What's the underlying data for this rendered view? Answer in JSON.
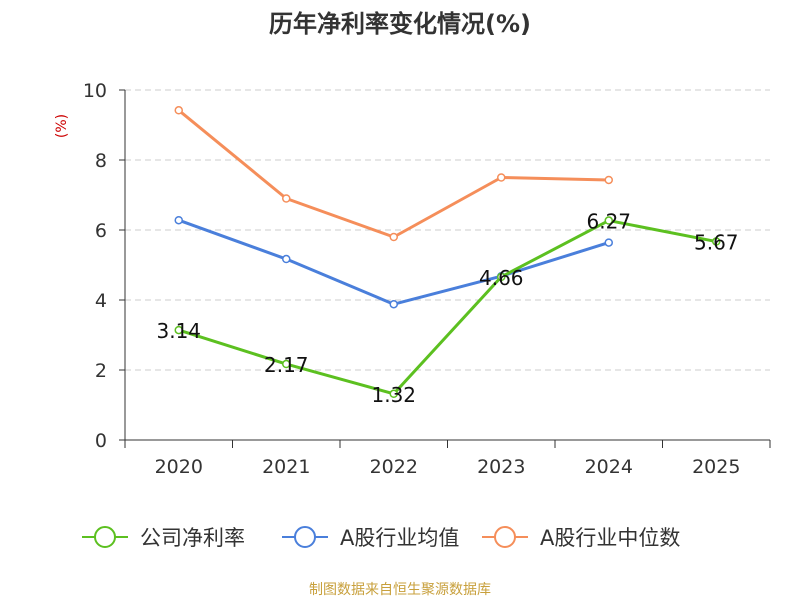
{
  "chart_data": {
    "type": "line",
    "title": "历年净利率变化情况(%)",
    "ylabel": "(%)",
    "xlabel": "",
    "categories": [
      "2020",
      "2021",
      "2022",
      "2023",
      "2024",
      "2025"
    ],
    "ylim": [
      0,
      10
    ],
    "yticks": [
      0,
      2,
      4,
      6,
      8,
      10
    ],
    "grid": true,
    "legend_position": "bottom",
    "series": [
      {
        "name": "公司净利率",
        "color": "#5cc020",
        "values": [
          3.14,
          2.17,
          1.32,
          4.66,
          6.27,
          5.67
        ],
        "labels": [
          "3.14",
          "2.17",
          "1.32",
          "4.66",
          "6.27",
          "5.67"
        ]
      },
      {
        "name": "A股行业均值",
        "color": "#4a7fdb",
        "values": [
          6.28,
          5.17,
          3.88,
          4.68,
          5.64,
          null
        ]
      },
      {
        "name": "A股行业中位数",
        "color": "#f58e5a",
        "values": [
          9.42,
          6.9,
          5.8,
          7.5,
          7.43,
          null
        ]
      }
    ]
  },
  "source": "制图数据来自恒生聚源数据库"
}
